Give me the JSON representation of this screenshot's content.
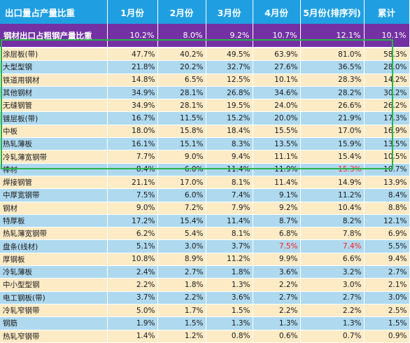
{
  "header": [
    "出口量占产量比重",
    "1月份",
    "2月份",
    "3月份",
    "4月份",
    "5月份(排序列)",
    "累计"
  ],
  "summary": {
    "label": "钢材出口占粗钢产量比重",
    "values": [
      "10.2%",
      "8.0%",
      "9.2%",
      "10.7%",
      "12.1%",
      "10.1%"
    ]
  },
  "rows": [
    {
      "label": "涂层板(带)",
      "values": [
        "47.7%",
        "40.2%",
        "49.5%",
        "63.9%",
        "81.0%",
        "58.3%"
      ],
      "shade": "cream"
    },
    {
      "label": "大型型钢",
      "values": [
        "21.8%",
        "20.2%",
        "32.7%",
        "27.6%",
        "36.5%",
        "28.0%"
      ],
      "shade": "blue"
    },
    {
      "label": "铁道用钢材",
      "values": [
        "14.8%",
        "6.5%",
        "12.5%",
        "10.1%",
        "28.3%",
        "14.2%"
      ],
      "shade": "cream"
    },
    {
      "label": "其他钢材",
      "values": [
        "34.9%",
        "28.1%",
        "26.8%",
        "34.6%",
        "28.2%",
        "30.2%"
      ],
      "shade": "blue"
    },
    {
      "label": "无缝钢管",
      "values": [
        "34.9%",
        "28.1%",
        "19.5%",
        "24.0%",
        "26.6%",
        "26.2%"
      ],
      "shade": "cream"
    },
    {
      "label": "镀层板(带)",
      "values": [
        "16.7%",
        "11.5%",
        "15.2%",
        "20.0%",
        "21.9%",
        "17.3%"
      ],
      "shade": "blue"
    },
    {
      "label": "中板",
      "values": [
        "18.0%",
        "15.8%",
        "18.4%",
        "15.5%",
        "17.0%",
        "16.9%"
      ],
      "shade": "cream"
    },
    {
      "label": "热轧薄板",
      "values": [
        "16.1%",
        "15.1%",
        "8.3%",
        "13.5%",
        "15.9%",
        "13.5%"
      ],
      "shade": "blue"
    },
    {
      "label": "冷轧薄宽钢带",
      "values": [
        "7.7%",
        "9.0%",
        "9.4%",
        "11.1%",
        "15.4%",
        "10.5%"
      ],
      "shade": "cream"
    },
    {
      "label": "棒材",
      "values": [
        "8.4%",
        "6.0%",
        "11.4%",
        "11.9%",
        "15.3%",
        "10.7%"
      ],
      "shade": "blue",
      "red": [
        4
      ]
    },
    {
      "label": "焊接钢管",
      "values": [
        "21.1%",
        "17.0%",
        "8.1%",
        "11.4%",
        "14.9%",
        "13.9%"
      ],
      "shade": "cream"
    },
    {
      "label": "中厚宽钢带",
      "values": [
        "7.5%",
        "6.0%",
        "7.4%",
        "9.1%",
        "11.2%",
        "8.4%"
      ],
      "shade": "blue"
    },
    {
      "label": "钢材",
      "values": [
        "9.0%",
        "7.2%",
        "7.9%",
        "9.2%",
        "10.4%",
        "8.8%"
      ],
      "shade": "cream"
    },
    {
      "label": "特厚板",
      "values": [
        "17.2%",
        "15.4%",
        "11.4%",
        "8.7%",
        "8.2%",
        "12.1%"
      ],
      "shade": "blue"
    },
    {
      "label": "热轧薄宽钢带",
      "values": [
        "6.2%",
        "5.4%",
        "8.1%",
        "6.8%",
        "7.8%",
        "6.9%"
      ],
      "shade": "cream"
    },
    {
      "label": "盘条(线材)",
      "values": [
        "5.1%",
        "3.0%",
        "3.7%",
        "7.5%",
        "7.4%",
        "5.5%"
      ],
      "shade": "blue",
      "red": [
        3,
        4
      ]
    },
    {
      "label": "厚钢板",
      "values": [
        "10.8%",
        "8.9%",
        "11.2%",
        "9.9%",
        "6.6%",
        "9.4%"
      ],
      "shade": "cream"
    },
    {
      "label": "冷轧薄板",
      "values": [
        "2.4%",
        "2.7%",
        "1.8%",
        "3.6%",
        "3.2%",
        "2.7%"
      ],
      "shade": "blue"
    },
    {
      "label": "中小型型钢",
      "values": [
        "2.2%",
        "1.8%",
        "1.3%",
        "2.2%",
        "3.0%",
        "2.1%"
      ],
      "shade": "cream"
    },
    {
      "label": "电工钢板(带)",
      "values": [
        "3.7%",
        "2.2%",
        "3.6%",
        "2.7%",
        "2.7%",
        "3.0%"
      ],
      "shade": "blue"
    },
    {
      "label": "冷轧窄钢带",
      "values": [
        "5.0%",
        "1.7%",
        "1.5%",
        "2.2%",
        "2.2%",
        "2.5%"
      ],
      "shade": "cream"
    },
    {
      "label": "钢筋",
      "values": [
        "1.9%",
        "1.5%",
        "1.3%",
        "1.3%",
        "1.3%",
        "1.5%"
      ],
      "shade": "blue"
    },
    {
      "label": "热轧窄钢带",
      "values": [
        "1.4%",
        "1.2%",
        "0.8%",
        "0.6%",
        "0.7%",
        "0.9%"
      ],
      "shade": "cream"
    }
  ],
  "colors": {
    "header_bg": "#1f9fe2",
    "summary_bg": "#7331a3",
    "row_blue": "#aed9ef",
    "row_cream": "#fdebc6",
    "highlight_border": "#2ab24a",
    "highlight_text": "#ff1d1d"
  }
}
